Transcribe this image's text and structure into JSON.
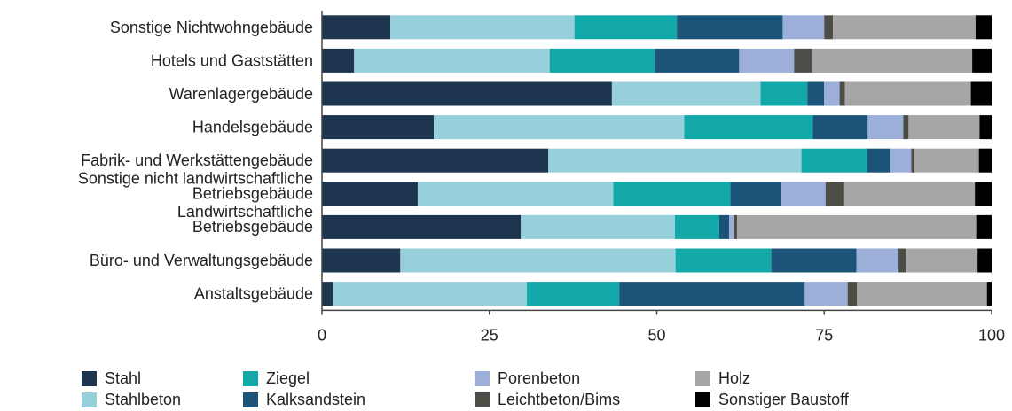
{
  "chart_data": {
    "type": "bar",
    "orientation": "horizontal",
    "stacked": true,
    "title": "",
    "xlabel": "",
    "ylabel": "",
    "xlim": [
      0,
      100
    ],
    "xticks": [
      0,
      25,
      50,
      75,
      100
    ],
    "grid": false,
    "legend_position": "bottom",
    "categories": [
      "Sonstige Nichtwohngebäude",
      "Hotels und Gaststätten",
      "Warenlagergebäude",
      "Handelsgebäude",
      "Fabrik- und Werkstättengebäude",
      "Sonstige nicht landwirtschaftliche Betriebsgebäude",
      "Landwirtschaftliche Betriebsgebäude",
      "Büro- und Verwaltungsgebäude",
      "Anstaltsgebäude"
    ],
    "series": [
      {
        "name": "Stahl",
        "color": "#1e3550",
        "values": [
          10.2,
          4.8,
          43.3,
          16.7,
          33.8,
          14.3,
          29.7,
          11.7,
          1.7
        ]
      },
      {
        "name": "Stahlbeton",
        "color": "#97cfdb",
        "values": [
          27.5,
          29.2,
          22.2,
          37.4,
          37.8,
          29.2,
          23.0,
          41.1,
          28.9
        ]
      },
      {
        "name": "Ziegel",
        "color": "#12a8a8",
        "values": [
          15.3,
          15.7,
          7.0,
          19.2,
          9.8,
          17.5,
          6.6,
          14.3,
          13.8
        ]
      },
      {
        "name": "Kalksandstein",
        "color": "#1c5378",
        "values": [
          15.8,
          12.6,
          2.5,
          8.2,
          3.5,
          7.5,
          1.5,
          12.7,
          27.7
        ]
      },
      {
        "name": "Porenbeton",
        "color": "#9bafd8",
        "values": [
          6.2,
          8.2,
          2.3,
          5.3,
          3.1,
          6.7,
          0.7,
          6.3,
          6.4
        ]
      },
      {
        "name": "Leichtbeton/Bims",
        "color": "#4d4d47",
        "values": [
          1.3,
          2.7,
          0.8,
          0.8,
          0.5,
          2.8,
          0.5,
          1.2,
          1.4
        ]
      },
      {
        "name": "Holz",
        "color": "#a6a6a6",
        "values": [
          21.3,
          23.9,
          18.8,
          10.6,
          9.6,
          19.5,
          35.7,
          10.6,
          19.4
        ]
      },
      {
        "name": "Sonstiger Baustoff",
        "color": "#000000",
        "values": [
          2.4,
          2.9,
          3.1,
          1.8,
          1.9,
          2.5,
          2.3,
          2.1,
          0.7
        ]
      }
    ]
  }
}
